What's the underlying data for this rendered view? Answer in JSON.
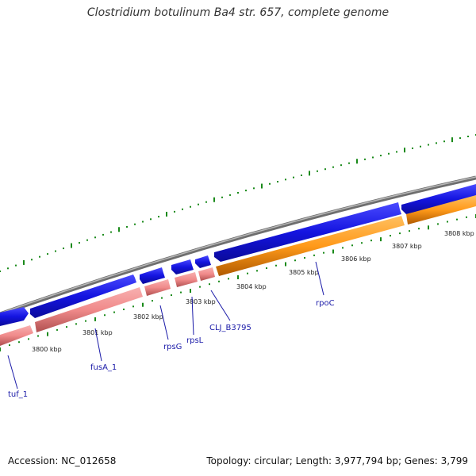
{
  "title": "Clostridium botulinum Ba4 str. 657, complete genome",
  "footer": {
    "accession": "Accession: NC_012658",
    "summary": "Topology: circular; Length: 3,977,794 bp; Genes: 3,799"
  },
  "colors": {
    "backbone": "#8a8a8a",
    "forward_feature": "#1414e0",
    "gene_pink": "#f08a8a",
    "gene_orange": "#ff9a1a",
    "tick_green": "#1a8a1a",
    "label_blue": "#1a1aa8"
  },
  "kbp_labels": [
    "3800 kbp",
    "3801 kbp",
    "3802 kbp",
    "3803 kbp",
    "3804 kbp",
    "3805 kbp",
    "3806 kbp",
    "3807 kbp",
    "3808 kbp"
  ],
  "genes": [
    "tuf_1",
    "fusA_1",
    "rpsG",
    "rpsL",
    "CLJ_B3795",
    "rpoC"
  ]
}
